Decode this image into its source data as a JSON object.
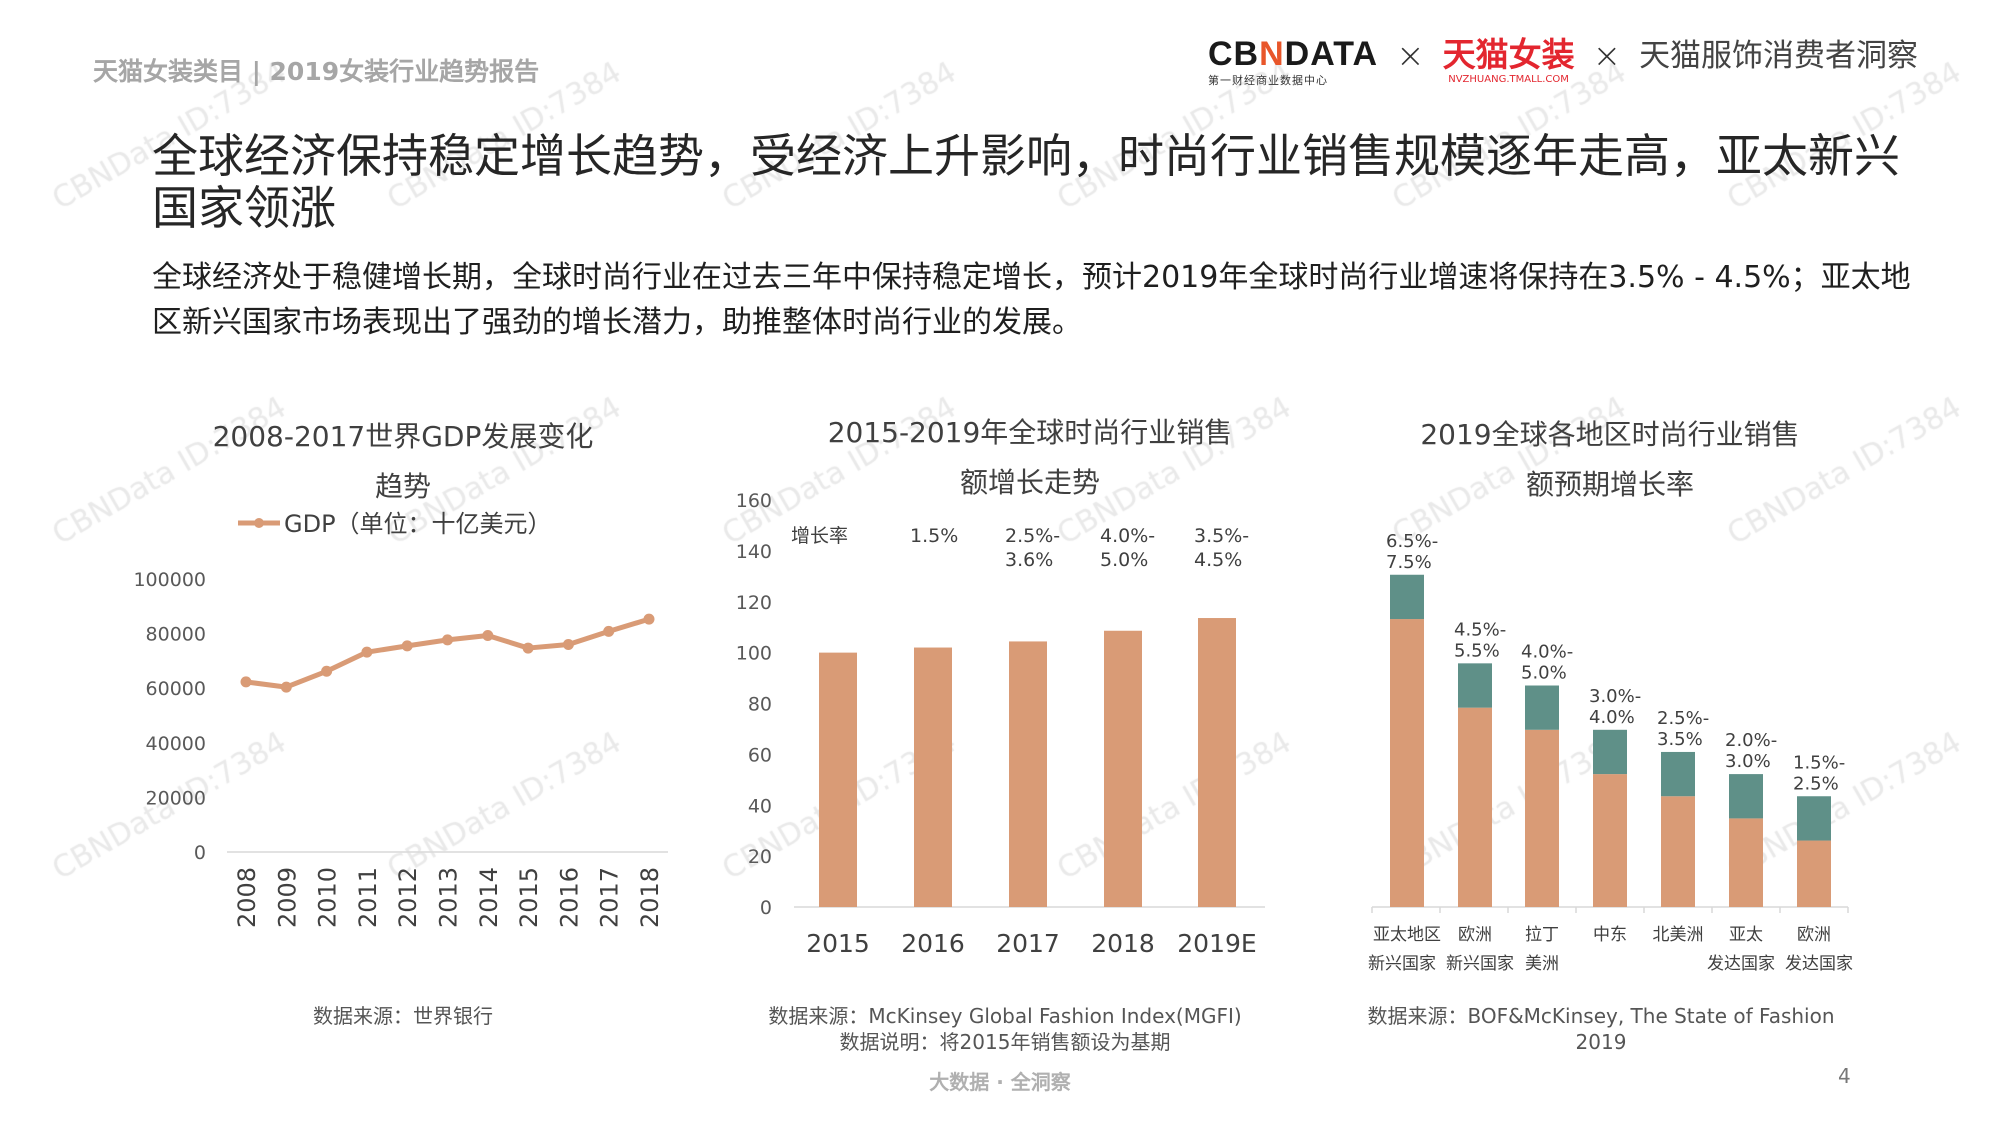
{
  "header": {
    "left_text": "天猫女装类目 | 2019女装行业趋势报告",
    "logo": {
      "cbndata": "CBNDATA",
      "cbndata_sub": "第一财经商业数据中心",
      "times": "×",
      "tmall": "天猫女装",
      "tmall_sub": "NVZHUANG.TMALL.COM",
      "insight": "天猫服饰消费者洞察"
    }
  },
  "title": "全球经济保持稳定增长趋势，受经济上升影响，时尚行业销售规模逐年走高，亚太新兴国家领涨",
  "paragraph": "全球经济处于稳健增长期，全球时尚行业在过去三年中保持稳定增长，预计2019年全球时尚行业增速将保持在3.5% - 4.5%；亚太地区新兴国家市场表现出了强劲的增长潜力，助推整体时尚行业的发展。",
  "watermark": "CBNData ID:7384",
  "colors": {
    "orange": "#D99B76",
    "teal": "#5F9088",
    "text": "#404040"
  },
  "chart_data": [
    {
      "type": "line",
      "title_line1": "2008-2017世界GDP发展变化",
      "title_line2": "趋势",
      "legend": "GDP（单位：十亿美元）",
      "legend_placement": "top",
      "x": [
        "2008",
        "2009",
        "2010",
        "2011",
        "2012",
        "2013",
        "2014",
        "2015",
        "2016",
        "2017",
        "2018"
      ],
      "series": [
        {
          "name": "GDP（单位：十亿美元）",
          "values": [
            62300,
            60400,
            66200,
            73200,
            75500,
            77700,
            79300,
            74700,
            76000,
            80800,
            85300
          ]
        }
      ],
      "ylim": [
        0,
        100000
      ],
      "yticks": [
        "0",
        "20000",
        "40000",
        "60000",
        "80000",
        "100000"
      ],
      "grid": false,
      "source": "数据来源：世界银行"
    },
    {
      "type": "bar",
      "title_line1": "2015-2019年全球时尚行业销售",
      "title_line2": "额增长走势",
      "categories": [
        "2015",
        "2016",
        "2017",
        "2018",
        "2019E"
      ],
      "values": [
        100,
        102,
        104.4,
        108.6,
        113.6
      ],
      "ylim": [
        0,
        160
      ],
      "yticks": [
        "0",
        "20",
        "40",
        "60",
        "80",
        "100",
        "120",
        "140",
        "160"
      ],
      "growth_label": "增长率",
      "growth_rates": [
        [
          "1.5%"
        ],
        [
          "2.5%-",
          "3.6%"
        ],
        [
          "4.0%-",
          "5.0%"
        ],
        [
          "3.5%-",
          "4.5%"
        ]
      ],
      "grid": false,
      "source": "数据来源：McKinsey Global Fashion Index(MGFI)",
      "note": "数据说明：将2015年销售额设为基期"
    },
    {
      "type": "bar",
      "stacked": true,
      "title_line1": "2019全球各地区时尚行业销售",
      "title_line2": "额预期增长率",
      "categories": [
        [
          "亚太地区",
          "新兴国家"
        ],
        [
          "欧洲",
          "新兴国家"
        ],
        [
          "拉丁",
          "美洲"
        ],
        [
          "中东",
          ""
        ],
        [
          "北美洲",
          ""
        ],
        [
          "亚太",
          "发达国家"
        ],
        [
          "欧洲",
          "发达国家"
        ]
      ],
      "low": [
        6.5,
        4.5,
        4.0,
        3.0,
        2.5,
        2.0,
        1.5
      ],
      "high": [
        7.5,
        5.5,
        5.0,
        4.0,
        3.5,
        3.0,
        2.5
      ],
      "labels": [
        [
          "6.5%-",
          "7.5%"
        ],
        [
          "4.5%-",
          "5.5%"
        ],
        [
          "4.0%-",
          "5.0%"
        ],
        [
          "3.0%-",
          "4.0%"
        ],
        [
          "2.5%-",
          "3.5%"
        ],
        [
          "2.0%-",
          "3.0%"
        ],
        [
          "1.5%-",
          "2.5%"
        ]
      ],
      "grid": false,
      "source_line1": "数据来源：BOF&McKinsey, The State of Fashion",
      "source_line2": "2019"
    }
  ],
  "footer": {
    "tagline": "大数据 · 全洞察",
    "page": "4"
  }
}
